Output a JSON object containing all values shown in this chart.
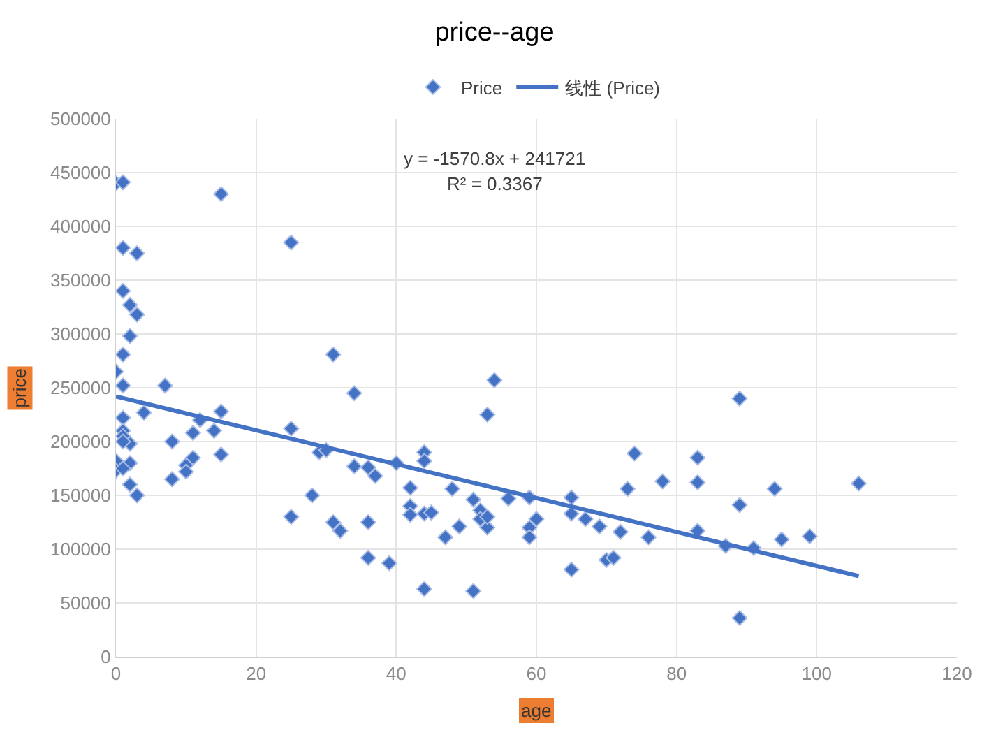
{
  "chart_data": {
    "type": "scatter",
    "title": "price--age",
    "xlabel": "age",
    "ylabel": "price",
    "xlim": [
      0,
      120
    ],
    "xticks": [
      0,
      20,
      40,
      60,
      80,
      100,
      120
    ],
    "ylim": [
      0,
      500000
    ],
    "yticks": [
      0,
      50000,
      100000,
      150000,
      200000,
      250000,
      300000,
      350000,
      400000,
      450000,
      500000
    ],
    "grid": true,
    "legend": "top",
    "marker": "diamond",
    "annotations": [
      "y = -1570.8x + 241721",
      "R² = 0.3367"
    ],
    "series": [
      {
        "name": "Price",
        "color": "#4472c4",
        "x": [
          0,
          1,
          15,
          1,
          3,
          25,
          1,
          2,
          3,
          2,
          1,
          0,
          1,
          7,
          31,
          34,
          1,
          4,
          15,
          12,
          11,
          14,
          25,
          1,
          1,
          2,
          8,
          1,
          15,
          11,
          10,
          10,
          0,
          2,
          0,
          1,
          2,
          3,
          8,
          29,
          30,
          28,
          25,
          31,
          32,
          36,
          36,
          39,
          34,
          37,
          36,
          40,
          42,
          42,
          42,
          44,
          45,
          44,
          44,
          44,
          47,
          48,
          49,
          51,
          52,
          52,
          53,
          53,
          51,
          53,
          54,
          56,
          59,
          59,
          59,
          60,
          65,
          65,
          65,
          67,
          69,
          70,
          71,
          72,
          73,
          74,
          76,
          78,
          83,
          83,
          83,
          87,
          89,
          89,
          89,
          91,
          94,
          95,
          99,
          106
        ],
        "values": [
          440000,
          441000,
          430000,
          380000,
          375000,
          385000,
          340000,
          327000,
          318000,
          298000,
          281000,
          265000,
          252000,
          252000,
          281000,
          245000,
          222000,
          227000,
          228000,
          220000,
          208000,
          210000,
          212000,
          210000,
          205000,
          198000,
          200000,
          200000,
          188000,
          185000,
          178000,
          172000,
          182000,
          180000,
          173000,
          175000,
          160000,
          150000,
          165000,
          190000,
          192000,
          150000,
          130000,
          125000,
          117000,
          125000,
          92000,
          87000,
          177000,
          168000,
          176000,
          180000,
          157000,
          140000,
          132000,
          133000,
          134000,
          190000,
          182000,
          63000,
          111000,
          156000,
          121000,
          146000,
          136000,
          128000,
          120000,
          130000,
          61000,
          225000,
          257000,
          147000,
          148000,
          120000,
          111000,
          128000,
          148000,
          133000,
          81000,
          128000,
          121000,
          90000,
          92000,
          116000,
          156000,
          189000,
          111000,
          163000,
          185000,
          162000,
          117000,
          103000,
          240000,
          141000,
          36000,
          101000,
          156000,
          109000,
          112000,
          161000
        ]
      },
      {
        "name": "线性 (Price)",
        "color": "#4472c4",
        "type": "line",
        "marker": "none",
        "x": [
          0,
          106
        ],
        "values": [
          242000,
          75000
        ]
      }
    ]
  }
}
